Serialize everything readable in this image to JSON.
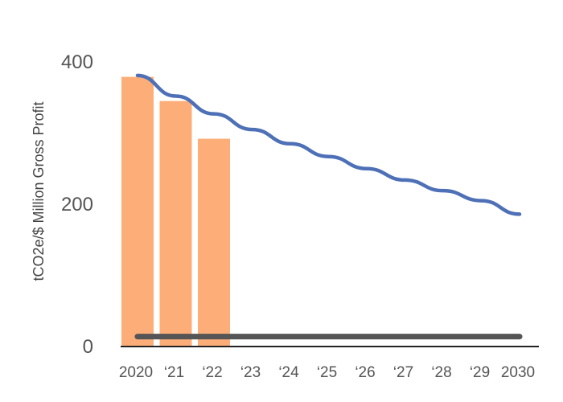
{
  "chart_data": {
    "type": "bar",
    "categories": [
      "2020",
      "‘21",
      "‘22",
      "‘23",
      "‘24",
      "‘25",
      "‘26",
      "‘27",
      "‘28",
      "‘29",
      "2030"
    ],
    "bars": {
      "color": "#FDAE78",
      "values": [
        379,
        345,
        292,
        null,
        null,
        null,
        null,
        null,
        null,
        null,
        null
      ]
    },
    "lines": [
      {
        "color": "#4E70B6",
        "values": [
          381,
          352,
          327,
          305,
          285,
          267,
          250,
          234,
          219,
          205,
          186
        ]
      },
      {
        "color": "#555555",
        "values": [
          14,
          14,
          14,
          14,
          14,
          14,
          14,
          14,
          14,
          14,
          14
        ]
      }
    ],
    "ylabel": "tCO2e/$ Million Gross Profit",
    "xlabel": "",
    "yticks": [
      0,
      200,
      400
    ],
    "ylim": [
      0,
      400
    ],
    "grid": false,
    "legend": "none"
  }
}
